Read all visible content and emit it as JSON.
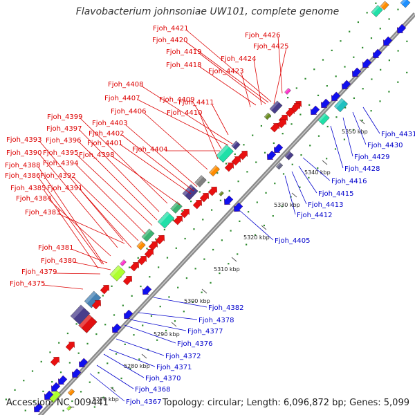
{
  "title": "Flavobacterium johnsoniae UW101, complete genome",
  "footer": {
    "accession": "Accession: NC_009441",
    "topology": "Topology: circular; Length: 6,096,872 bp; Genes: 5,099"
  },
  "colors": {
    "upper_labels": "#dd0000",
    "lower_labels": "#0000cc",
    "backbone": "#8a8a8a"
  },
  "ticks": [
    "5270 kbp",
    "5280 kbp",
    "5290 kbp",
    "5300 kbp",
    "5310 kbp",
    "5320 kbp",
    "5330 kbp",
    "5340 kbp",
    "5350 kbp"
  ],
  "upper_labels": [
    "Fjoh_4426",
    "Fjoh_4421",
    "Fjoh_4420",
    "Fjoh_4425",
    "Fjoh_4419",
    "Fjoh_4424",
    "Fjoh_4418",
    "Fjoh_4423",
    "Fjoh_4408",
    "Fjoh_4407",
    "Fjoh_4409",
    "Fjoh_4411",
    "Fjoh_4406",
    "Fjoh_4410",
    "Fjoh_4399",
    "Fjoh_4403",
    "Fjoh_4397",
    "Fjoh_4402",
    "Fjoh_4393",
    "Fjoh_4396",
    "Fjoh_4401",
    "Fjoh_4404",
    "Fjoh_4390",
    "Fjoh_4395",
    "Fjoh_4398",
    "Fjoh_4388",
    "Fjoh_4394",
    "Fjoh_4386",
    "Fjoh_4392",
    "Fjoh_4385",
    "Fjoh_4391",
    "Fjoh_4384",
    "Fjoh_4383",
    "Fjoh_4381",
    "Fjoh_4380",
    "Fjoh_4379",
    "Fjoh_4375"
  ],
  "lower_labels": [
    "Fjoh_4431",
    "Fjoh_4430",
    "Fjoh_4429",
    "Fjoh_4428",
    "Fjoh_4416",
    "Fjoh_4415",
    "Fjoh_4413",
    "Fjoh_4412",
    "Fjoh_4405",
    "Fjoh_4382",
    "Fjoh_4378",
    "Fjoh_4377",
    "Fjoh_4376",
    "Fjoh_4372",
    "Fjoh_4371",
    "Fjoh_4370",
    "Fjoh_4368",
    "Fjoh_4367"
  ]
}
